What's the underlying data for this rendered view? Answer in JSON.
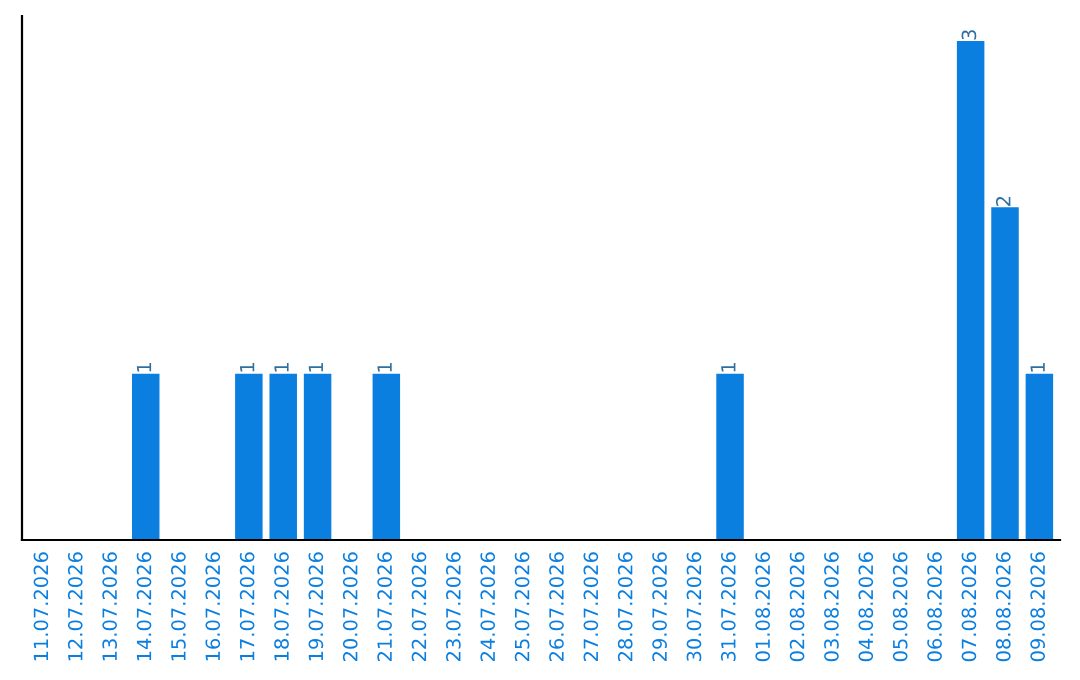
{
  "chart_data": {
    "type": "bar",
    "categories": [
      "11.07.2026",
      "12.07.2026",
      "13.07.2026",
      "14.07.2026",
      "15.07.2026",
      "16.07.2026",
      "17.07.2026",
      "18.07.2026",
      "19.07.2026",
      "20.07.2026",
      "21.07.2026",
      "22.07.2026",
      "23.07.2026",
      "24.07.2026",
      "25.07.2026",
      "26.07.2026",
      "27.07.2026",
      "28.07.2026",
      "29.07.2026",
      "30.07.2026",
      "31.07.2026",
      "01.08.2026",
      "02.08.2026",
      "03.08.2026",
      "04.08.2026",
      "05.08.2026",
      "06.08.2026",
      "07.08.2026",
      "08.08.2026",
      "09.08.2026"
    ],
    "values": [
      0,
      0,
      0,
      1,
      0,
      0,
      1,
      1,
      1,
      0,
      1,
      0,
      0,
      0,
      0,
      0,
      0,
      0,
      0,
      0,
      1,
      0,
      0,
      0,
      0,
      0,
      0,
      3,
      2,
      1
    ],
    "value_labels": [
      null,
      null,
      null,
      "1",
      null,
      null,
      "1",
      "1",
      "1",
      null,
      "1",
      null,
      null,
      null,
      null,
      null,
      null,
      null,
      null,
      null,
      "1",
      null,
      null,
      null,
      null,
      null,
      null,
      "3",
      "2",
      "1"
    ],
    "color": "#0a7fe0",
    "tick_labels": "x",
    "grid": false,
    "legend": false
  }
}
